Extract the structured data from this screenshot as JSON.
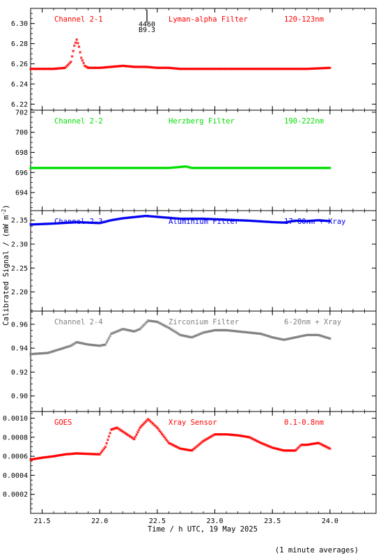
{
  "figure": {
    "ylabel": "Calibrated Signal / (mW m",
    "ylabel_sup": "-2",
    "ylabel_close": ")",
    "xlabel": "Time / h UTC, 19 May 2025",
    "footnote": "(1 minute averages)",
    "marker": {
      "line1": "4460",
      "line2": "B9.3",
      "x": 22.41
    }
  },
  "chart_data": [
    {
      "type": "scatter",
      "channel": "Channel 2-1",
      "filter": "Lyman-alpha Filter",
      "band": "120-123nm",
      "color": "#ff0000",
      "xlim": [
        21.4,
        24.4
      ],
      "ylim": [
        6.214,
        6.315
      ],
      "yticks": [
        6.22,
        6.24,
        6.26,
        6.28,
        6.3
      ],
      "ytick_labels": [
        "6.22",
        "6.24",
        "6.26",
        "6.28",
        "6.30"
      ],
      "series": [
        {
          "x": [
            21.4,
            21.5,
            21.6,
            21.7,
            21.75,
            21.78,
            21.8,
            21.82,
            21.84,
            21.87,
            21.9,
            22.0,
            22.1,
            22.2,
            22.3,
            22.4,
            22.5,
            22.6,
            22.7,
            22.8,
            22.9,
            23.0,
            23.2,
            23.4,
            23.6,
            23.8,
            24.0
          ],
          "y": [
            6.255,
            6.255,
            6.255,
            6.256,
            6.262,
            6.278,
            6.284,
            6.277,
            6.266,
            6.258,
            6.256,
            6.256,
            6.257,
            6.258,
            6.257,
            6.257,
            6.256,
            6.256,
            6.255,
            6.255,
            6.255,
            6.255,
            6.255,
            6.255,
            6.255,
            6.255,
            6.256
          ]
        }
      ]
    },
    {
      "type": "scatter",
      "channel": "Channel 2-2",
      "filter": "Herzberg Filter",
      "band": "190-222nm",
      "color": "#00dd00",
      "xlim": [
        21.4,
        24.4
      ],
      "ylim": [
        692.2,
        702.2
      ],
      "yticks": [
        694,
        696,
        698,
        700,
        702
      ],
      "ytick_labels": [
        "694",
        "696",
        "698",
        "700",
        "702"
      ],
      "series": [
        {
          "x": [
            21.4,
            21.8,
            22.2,
            22.6,
            22.75,
            22.8,
            23.2,
            23.6,
            24.0
          ],
          "y": [
            696.45,
            696.45,
            696.45,
            696.45,
            696.6,
            696.45,
            696.45,
            696.45,
            696.45
          ]
        }
      ]
    },
    {
      "type": "scatter",
      "channel": "Channel 2-3",
      "filter": "Aluminium Filter",
      "band": "17-80nm + Xray",
      "color": "#0000ee",
      "xlim": [
        21.4,
        24.4
      ],
      "ylim": [
        2.16,
        2.37
      ],
      "yticks": [
        2.2,
        2.25,
        2.3,
        2.35
      ],
      "ytick_labels": [
        "2.20",
        "2.25",
        "2.30",
        "2.35"
      ],
      "series": [
        {
          "x": [
            21.4,
            21.6,
            21.8,
            22.0,
            22.1,
            22.2,
            22.4,
            22.5,
            22.7,
            22.9,
            23.1,
            23.3,
            23.5,
            23.6,
            23.7,
            23.8,
            23.9,
            24.0
          ],
          "y": [
            2.341,
            2.343,
            2.346,
            2.344,
            2.35,
            2.354,
            2.359,
            2.357,
            2.353,
            2.353,
            2.351,
            2.349,
            2.346,
            2.345,
            2.349,
            2.348,
            2.35,
            2.348
          ]
        }
      ]
    },
    {
      "type": "scatter",
      "channel": "Channel 2-4",
      "filter": "Zirconium Filter",
      "band": "6-20nm + Xray",
      "color": "#808080",
      "xlim": [
        21.4,
        24.4
      ],
      "ylim": [
        0.887,
        0.971
      ],
      "yticks": [
        0.9,
        0.92,
        0.94,
        0.96
      ],
      "ytick_labels": [
        "0.90",
        "0.92",
        "0.94",
        "0.96"
      ],
      "series": [
        {
          "x": [
            21.4,
            21.55,
            21.65,
            21.75,
            21.8,
            21.9,
            22.0,
            22.05,
            22.1,
            22.2,
            22.3,
            22.35,
            22.42,
            22.5,
            22.6,
            22.7,
            22.8,
            22.9,
            23.0,
            23.1,
            23.2,
            23.3,
            23.4,
            23.5,
            23.6,
            23.7,
            23.8,
            23.9,
            24.0
          ],
          "y": [
            0.935,
            0.936,
            0.939,
            0.942,
            0.945,
            0.943,
            0.942,
            0.943,
            0.952,
            0.956,
            0.954,
            0.956,
            0.963,
            0.962,
            0.957,
            0.951,
            0.949,
            0.953,
            0.955,
            0.955,
            0.954,
            0.953,
            0.952,
            0.949,
            0.947,
            0.949,
            0.951,
            0.951,
            0.948
          ]
        }
      ]
    },
    {
      "type": "scatter",
      "channel": "GOES",
      "filter": "Xray Sensor",
      "band": "0.1-0.8nm",
      "color": "#ff0000",
      "xlim": [
        21.4,
        24.4
      ],
      "ylim": [
        0.0,
        0.00107
      ],
      "yticks": [
        0.0002,
        0.0004,
        0.0006,
        0.0008,
        0.001
      ],
      "ytick_labels": [
        "0.0002",
        "0.0004",
        "0.0006",
        "0.0008",
        "0.0010"
      ],
      "series": [
        {
          "x": [
            21.4,
            21.5,
            21.6,
            21.7,
            21.8,
            21.9,
            22.0,
            22.05,
            22.1,
            22.15,
            22.2,
            22.3,
            22.35,
            22.42,
            22.5,
            22.6,
            22.7,
            22.8,
            22.9,
            23.0,
            23.1,
            23.2,
            23.3,
            23.4,
            23.5,
            23.6,
            23.7,
            23.75,
            23.8,
            23.9,
            24.0
          ],
          "y": [
            0.000565,
            0.000585,
            0.0006,
            0.00062,
            0.00063,
            0.000625,
            0.00062,
            0.0007,
            0.00088,
            0.0009,
            0.00086,
            0.00078,
            0.0009,
            0.00099,
            0.0009,
            0.00074,
            0.00068,
            0.00066,
            0.00076,
            0.00083,
            0.00083,
            0.00082,
            0.0008,
            0.00074,
            0.00069,
            0.00066,
            0.00066,
            0.00072,
            0.00072,
            0.00074,
            0.00068
          ]
        }
      ]
    }
  ],
  "x_axis": {
    "ticks": [
      21.5,
      22.0,
      22.5,
      23.0,
      23.5,
      24.0
    ],
    "tick_labels": [
      "21.5",
      "22.0",
      "22.5",
      "23.0",
      "23.5",
      "24.0"
    ]
  }
}
